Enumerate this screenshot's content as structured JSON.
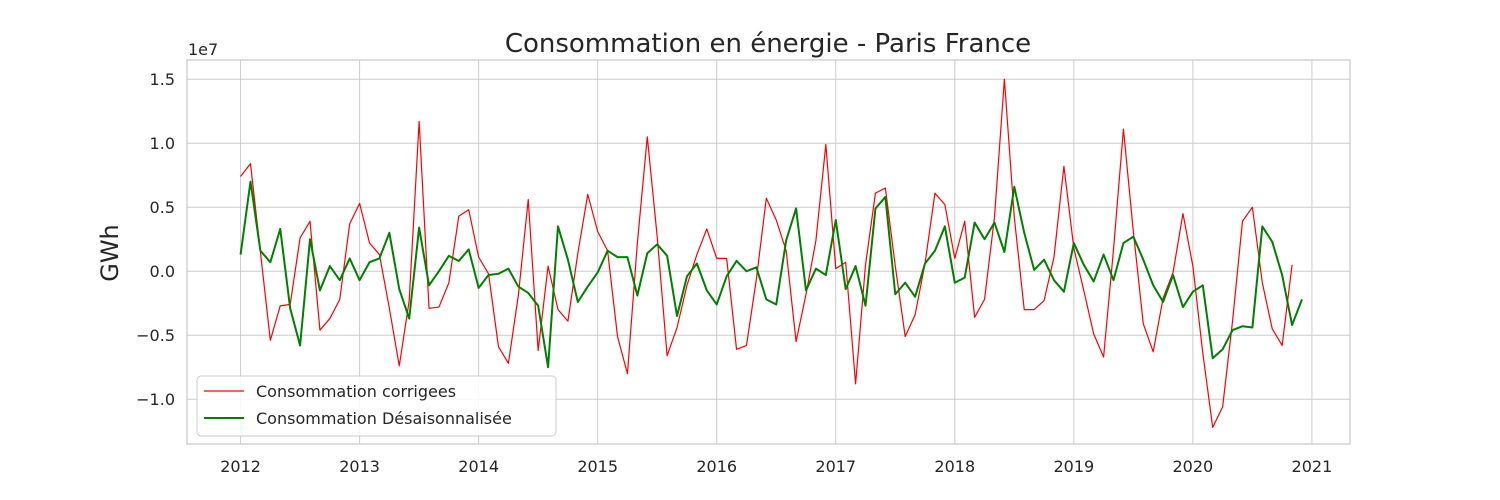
{
  "chart_data": {
    "type": "line",
    "title": "Consommation en énergie - Paris France",
    "xlabel": "",
    "ylabel": "GWh",
    "y_scale_label": "1e7",
    "xlim": [
      2011.55,
      2021.32
    ],
    "ylim": [
      -1.35,
      1.65
    ],
    "x_ticks": [
      2012,
      2013,
      2014,
      2015,
      2016,
      2017,
      2018,
      2019,
      2020,
      2021
    ],
    "y_ticks": [
      1.5,
      1.0,
      0.5,
      0.0,
      -0.5,
      -1.0
    ],
    "y_tick_labels": [
      "1.5",
      "1.0",
      "0.5",
      "0.0",
      "−0.5",
      "−1.0"
    ],
    "grid": true,
    "legend_position": "lower-left",
    "x_start_year": 2012,
    "series": [
      {
        "name": "Consommation corrigees",
        "color": "#ff0000",
        "values": [
          0.74,
          0.84,
          0.15,
          -0.54,
          -0.27,
          -0.26,
          0.26,
          0.39,
          -0.46,
          -0.37,
          -0.22,
          0.37,
          0.53,
          0.22,
          0.13,
          -0.29,
          -0.74,
          -0.23,
          1.17,
          -0.29,
          -0.28,
          -0.09,
          0.43,
          0.48,
          0.11,
          -0.02,
          -0.59,
          -0.72,
          -0.19,
          0.56,
          -0.62,
          0.04,
          -0.3,
          -0.39,
          0.14,
          0.6,
          0.31,
          0.16,
          -0.51,
          -0.8,
          0.22,
          1.05,
          0.27,
          -0.66,
          -0.44,
          -0.11,
          0.13,
          0.33,
          0.1,
          0.1,
          -0.61,
          -0.58,
          -0.06,
          0.57,
          0.4,
          0.16,
          -0.55,
          -0.18,
          0.24,
          0.99,
          0.02,
          0.07,
          -0.88,
          0.05,
          0.61,
          0.65,
          0.04,
          -0.51,
          -0.34,
          0.06,
          0.61,
          0.52,
          0.1,
          0.39,
          -0.36,
          -0.22,
          0.42,
          1.5,
          0.42,
          -0.3,
          -0.3,
          -0.23,
          0.11,
          0.82,
          0.18,
          -0.15,
          -0.49,
          -0.67,
          0.17,
          1.11,
          0.31,
          -0.41,
          -0.63,
          -0.21,
          -0.01,
          0.45,
          0.04,
          -0.64,
          -1.22,
          -1.06,
          -0.39,
          0.39,
          0.5,
          -0.09,
          -0.45,
          -0.58,
          0.05
        ]
      },
      {
        "name": "Consommation Désaisonnalisée",
        "color": "#008000",
        "values": [
          0.13,
          0.7,
          0.16,
          0.07,
          0.33,
          -0.29,
          -0.58,
          0.25,
          -0.15,
          0.04,
          -0.07,
          0.1,
          -0.07,
          0.07,
          0.1,
          0.3,
          -0.14,
          -0.37,
          0.34,
          -0.11,
          0.0,
          0.12,
          0.08,
          0.17,
          -0.13,
          -0.03,
          -0.02,
          0.02,
          -0.12,
          -0.17,
          -0.27,
          -0.75,
          0.35,
          0.09,
          -0.24,
          -0.12,
          -0.01,
          0.16,
          0.11,
          0.11,
          -0.19,
          0.14,
          0.21,
          0.12,
          -0.35,
          -0.04,
          0.06,
          -0.15,
          -0.26,
          -0.04,
          0.08,
          0.0,
          0.03,
          -0.22,
          -0.26,
          0.24,
          0.49,
          -0.15,
          0.02,
          -0.03,
          0.4,
          -0.14,
          0.04,
          -0.27,
          0.49,
          0.58,
          -0.18,
          -0.09,
          -0.2,
          0.06,
          0.16,
          0.35,
          -0.09,
          -0.05,
          0.38,
          0.25,
          0.38,
          0.15,
          0.66,
          0.3,
          0.01,
          0.09,
          -0.07,
          -0.16,
          0.22,
          0.05,
          -0.08,
          0.13,
          -0.07,
          0.22,
          0.27,
          0.09,
          -0.11,
          -0.24,
          -0.03,
          -0.28,
          -0.16,
          -0.11,
          -0.68,
          -0.61,
          -0.46,
          -0.43,
          -0.44,
          0.35,
          0.23,
          -0.03,
          -0.42,
          -0.22
        ]
      }
    ]
  },
  "colors": {
    "background": "#ffffff",
    "grid": "#cccccc",
    "axes_edge": "#cccccc",
    "legend_edge": "#cccccc"
  }
}
